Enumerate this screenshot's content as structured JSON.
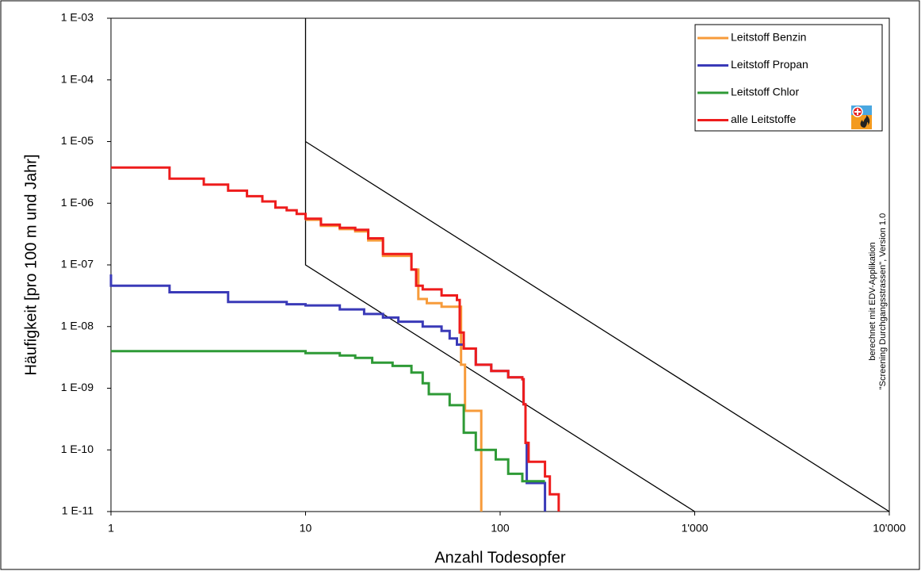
{
  "chart_data": {
    "type": "line",
    "drawstyle": "steps",
    "xlabel": "Anzahl Todesopfer",
    "ylabel": "Häufigkeit [pro 100 m und Jahr]",
    "annotation": [
      "berechnet mit EDV-Applikation",
      "\"Screening Durchgangsstrassen\", Version 1.0"
    ],
    "xscale": "log",
    "yscale": "log",
    "legend": "upper right",
    "xlim": [
      1,
      10000
    ],
    "ylim": [
      1e-11,
      0.001
    ],
    "xticks": [
      1,
      10,
      100,
      {
        "value": 1000,
        "label": "1'000"
      },
      {
        "value": 10000,
        "label": "10'000"
      }
    ],
    "yticks": [
      {
        "value": 1e-11,
        "label": "1 E-11"
      },
      {
        "value": 1e-10,
        "label": "1 E-10"
      },
      {
        "value": 1e-09,
        "label": "1 E-09"
      },
      {
        "value": 1e-08,
        "label": "1 E-08"
      },
      {
        "value": 1e-07,
        "label": "1 E-07"
      },
      {
        "value": 1e-06,
        "label": "1 E-06"
      },
      {
        "value": 1e-05,
        "label": "1 E-05"
      },
      {
        "value": 0.0001,
        "label": "1 E-04"
      },
      {
        "value": 0.001,
        "label": "1 E-03"
      }
    ],
    "series": [
      {
        "name": "Leitstoff Benzin",
        "color": "#f79b3a",
        "x": [
          10,
          12,
          12,
          15,
          15,
          18,
          18,
          21,
          21,
          25,
          25,
          35,
          35,
          38,
          38,
          42,
          42,
          50,
          50,
          63,
          63,
          66,
          66,
          80,
          80
        ],
        "values": [
          5.4e-07,
          5.4e-07,
          4.3e-07,
          4.3e-07,
          3.8e-07,
          3.8e-07,
          3.5e-07,
          3.5e-07,
          2.5e-07,
          2.5e-07,
          1.4e-07,
          1.4e-07,
          8.4e-08,
          8.4e-08,
          2.8e-08,
          2.8e-08,
          2.4e-08,
          2.4e-08,
          2.1e-08,
          2.1e-08,
          2.4e-09,
          2.4e-09,
          4.3e-10,
          4.3e-10,
          1e-11
        ]
      },
      {
        "name": "Leitstoff Propan",
        "color": "#3a3ab8",
        "x": [
          1,
          1,
          1,
          2,
          2,
          4,
          4,
          8,
          8,
          10,
          10,
          15,
          15,
          20,
          20,
          25,
          25,
          30,
          30,
          40,
          40,
          50,
          50,
          55,
          55,
          60,
          60,
          65,
          65,
          75,
          75,
          90,
          90,
          110,
          110,
          130,
          130,
          132,
          132,
          135,
          135,
          137,
          137,
          170,
          170
        ],
        "values": [
          7e-08,
          7e-08,
          4.6e-08,
          4.6e-08,
          3.6e-08,
          3.6e-08,
          2.5e-08,
          2.5e-08,
          2.3e-08,
          2.3e-08,
          2.2e-08,
          2.2e-08,
          1.9e-08,
          1.9e-08,
          1.6e-08,
          1.6e-08,
          1.4e-08,
          1.4e-08,
          1.2e-08,
          1.2e-08,
          1e-08,
          1e-08,
          8.5e-09,
          8.5e-09,
          6.4e-09,
          6.4e-09,
          5.1e-09,
          5.1e-09,
          4.4e-09,
          4.4e-09,
          2.4e-09,
          2.4e-09,
          1.9e-09,
          1.9e-09,
          1.5e-09,
          1.5e-09,
          1.4e-09,
          1.4e-09,
          5.5e-10,
          5.5e-10,
          1.3e-10,
          1.3e-10,
          2.9e-11,
          2.9e-11,
          1e-11
        ]
      },
      {
        "name": "Leitstoff Chlor",
        "color": "#2e9a36",
        "x": [
          1,
          10,
          10,
          15,
          15,
          18,
          18,
          22,
          22,
          28,
          28,
          35,
          35,
          40,
          40,
          43,
          43,
          55,
          55,
          65,
          65,
          75,
          75,
          95,
          95,
          110,
          110,
          130,
          130,
          170
        ],
        "values": [
          4e-09,
          4e-09,
          3.7e-09,
          3.7e-09,
          3.4e-09,
          3.4e-09,
          3.1e-09,
          3.1e-09,
          2.6e-09,
          2.6e-09,
          2.3e-09,
          2.3e-09,
          1.8e-09,
          1.8e-09,
          1.2e-09,
          1.2e-09,
          8e-10,
          8e-10,
          5.3e-10,
          5.3e-10,
          1.9e-10,
          1.9e-10,
          1e-10,
          1e-10,
          7e-11,
          7e-11,
          4.1e-11,
          4.1e-11,
          3.1e-11,
          3.1e-11
        ]
      },
      {
        "name": "alle Leitstoffe",
        "color": "#ee1c1c",
        "x": [
          1,
          2,
          2,
          3,
          3,
          4,
          4,
          5,
          5,
          6,
          6,
          7,
          7,
          8,
          8,
          9,
          9,
          10,
          10,
          12,
          12,
          15,
          15,
          18,
          18,
          21,
          21,
          25,
          25,
          35,
          35,
          37,
          37,
          40,
          40,
          50,
          50,
          60,
          60,
          62,
          62,
          65,
          65,
          75,
          75,
          90,
          90,
          110,
          110,
          130,
          130,
          132,
          132,
          135,
          135,
          140,
          140,
          170,
          170,
          180,
          180,
          200,
          200
        ],
        "values": [
          3.8e-06,
          3.8e-06,
          2.5e-06,
          2.5e-06,
          2e-06,
          2e-06,
          1.6e-06,
          1.6e-06,
          1.3e-06,
          1.3e-06,
          1.07e-06,
          1.07e-06,
          8.5e-07,
          8.5e-07,
          7.7e-07,
          7.7e-07,
          6.7e-07,
          6.7e-07,
          5.6e-07,
          5.6e-07,
          4.5e-07,
          4.5e-07,
          4e-07,
          4e-07,
          3.7e-07,
          3.7e-07,
          2.7e-07,
          2.7e-07,
          1.5e-07,
          1.5e-07,
          8.4e-08,
          8.4e-08,
          4.6e-08,
          4.6e-08,
          4e-08,
          4e-08,
          3.2e-08,
          3.2e-08,
          2.7e-08,
          2.7e-08,
          8e-09,
          8e-09,
          4.4e-09,
          4.4e-09,
          2.4e-09,
          2.4e-09,
          1.9e-09,
          1.9e-09,
          1.5e-09,
          1.5e-09,
          1.4e-09,
          1.4e-09,
          5.5e-10,
          5.5e-10,
          1.3e-10,
          1.3e-10,
          6.4e-11,
          6.4e-11,
          3.7e-11,
          3.7e-11,
          1.9e-11,
          1.9e-11,
          1e-11
        ]
      }
    ],
    "limit_lines": [
      {
        "color": "#000000",
        "x": [
          10,
          10,
          1000
        ],
        "values": [
          0.001,
          1e-07,
          1e-11
        ]
      },
      {
        "color": "#000000",
        "x": [
          10,
          10000
        ],
        "values": [
          1e-05,
          1e-11
        ]
      }
    ]
  }
}
